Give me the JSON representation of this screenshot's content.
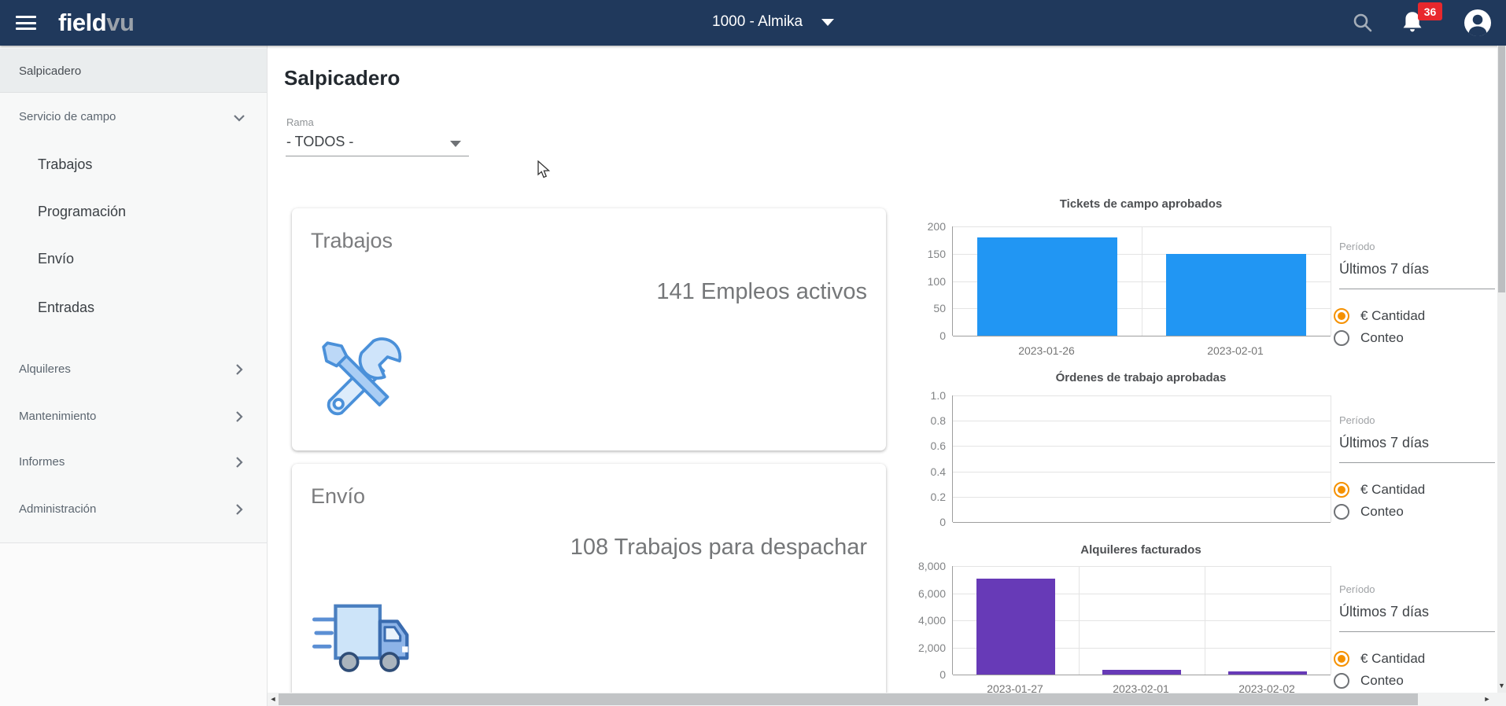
{
  "topbar": {
    "brand": {
      "part1": "field",
      "part2": "vu"
    },
    "company_selector": "1000 - Almika",
    "notifications_badge": "36"
  },
  "sidebar": {
    "items": [
      {
        "label": "Salpicadero"
      },
      {
        "label": "Servicio de campo"
      },
      {
        "label": "Trabajos"
      },
      {
        "label": "Programación"
      },
      {
        "label": "Envío"
      },
      {
        "label": "Entradas"
      },
      {
        "label": "Alquileres"
      },
      {
        "label": "Mantenimiento"
      },
      {
        "label": "Informes"
      },
      {
        "label": "Administración"
      }
    ]
  },
  "page": {
    "title": "Salpicadero",
    "branch_label": "Rama",
    "branch_value": "- TODOS -"
  },
  "cards": [
    {
      "title": "Trabajos",
      "value": "141 Empleos activos",
      "icon": "tools-icon"
    },
    {
      "title": "Envío",
      "value": "108 Trabajos para despachar",
      "icon": "truck-icon"
    }
  ],
  "chart_data": [
    {
      "type": "bar",
      "title": "Tickets de campo aprobados",
      "categories": [
        "2023-01-26",
        "2023-02-01"
      ],
      "values": [
        180,
        150
      ],
      "color": "#2196f3",
      "ylim": [
        0,
        200
      ],
      "yticks": [
        0,
        50,
        100,
        150,
        200
      ],
      "ytick_labels": [
        "0",
        "50",
        "100",
        "150",
        "200"
      ],
      "bar_ratio": 0.74,
      "grid": true,
      "legend": "none"
    },
    {
      "type": "bar",
      "title": "Órdenes de trabajo aprobadas",
      "categories": [],
      "values": [],
      "color": "#2196f3",
      "ylim": [
        0,
        1
      ],
      "yticks": [
        0,
        0.2,
        0.4,
        0.6,
        0.8,
        1.0
      ],
      "ytick_labels": [
        "0",
        "0.2",
        "0.4",
        "0.6",
        "0.8",
        "1.0"
      ],
      "bar_ratio": 0.74,
      "grid": true,
      "legend": "none",
      "note": "no data shown"
    },
    {
      "type": "bar",
      "title": "Alquileres facturados",
      "categories": [
        "2023-01-27",
        "2023-02-01",
        "2023-02-02"
      ],
      "values": [
        7100,
        320,
        230
      ],
      "color": "#673ab7",
      "ylim": [
        0,
        8000
      ],
      "yticks": [
        0,
        2000,
        4000,
        6000,
        8000
      ],
      "ytick_labels": [
        "0",
        "2,000",
        "4,000",
        "6,000",
        "8,000"
      ],
      "bar_ratio": 0.63,
      "grid": true,
      "legend": "none"
    }
  ],
  "panels": [
    {
      "period_label": "Período",
      "period_value": "Últimos 7 días",
      "options": [
        "€ Cantidad",
        "Conteo"
      ],
      "selected": 0
    },
    {
      "period_label": "Período",
      "period_value": "Últimos 7 días",
      "options": [
        "€ Cantidad",
        "Conteo"
      ],
      "selected": 0
    },
    {
      "period_label": "Período",
      "period_value": "Últimos 7 días",
      "options": [
        "€ Cantidad",
        "Conteo"
      ],
      "selected": 0
    }
  ],
  "colors": {
    "topbar_bg": "#20395c",
    "bar_blue": "#2196f3",
    "bar_purple": "#673ab7",
    "radio_orange": "#f59100",
    "badge_red": "#e8282d"
  }
}
